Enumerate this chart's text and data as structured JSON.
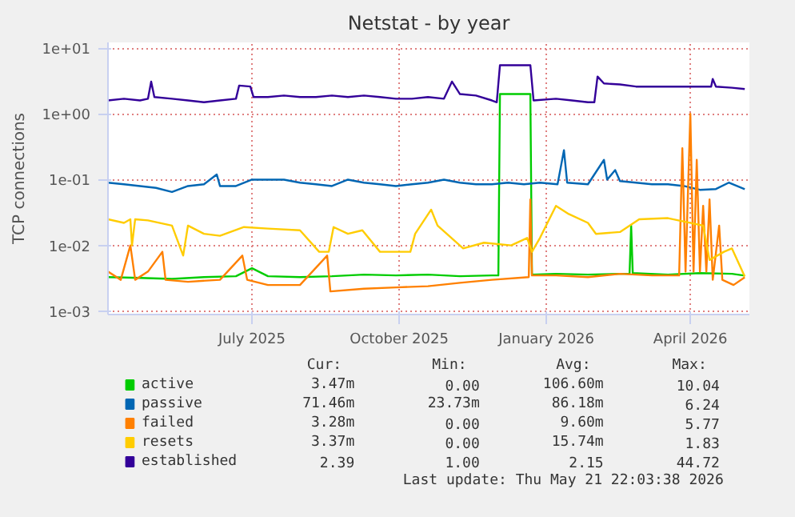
{
  "chart_data": {
    "type": "line",
    "title": "Netstat - by year",
    "ylabel": "TCP connections",
    "log": "y",
    "grid": true,
    "legend": "bottom",
    "marker": "none",
    "line_style": "solid",
    "xlim": [
      "2025-04-16",
      "2026-05-21T22:00"
    ],
    "ylim": [
      0.00089,
      12.2
    ],
    "xticks": [
      {
        "value": "2025-07-15",
        "label": "July 2025"
      },
      {
        "value": "2025-10-15",
        "label": "October 2025"
      },
      {
        "value": "2026-01-15",
        "label": "January 2026"
      },
      {
        "value": "2026-04-15",
        "label": "April 2026"
      }
    ],
    "yticks": [
      {
        "value": 0.001,
        "label": "1e-03"
      },
      {
        "value": 0.01,
        "label": "1e-02"
      },
      {
        "value": 0.1,
        "label": "1e-01"
      },
      {
        "value": 1,
        "label": "1e+00"
      },
      {
        "value": 10,
        "label": "1e+01"
      }
    ],
    "series": [
      {
        "name": "active",
        "color": "#00cc00",
        "x": [
          "2025-04-16",
          "2025-05-06",
          "2025-05-26",
          "2025-06-15",
          "2025-07-05",
          "2025-07-15",
          "2025-07-25",
          "2025-08-14",
          "2025-09-03",
          "2025-09-23",
          "2025-10-13",
          "2025-11-02",
          "2025-11-22",
          "2025-12-12",
          "2025-12-16",
          "2025-12-17",
          "2026-01-05",
          "2026-01-06",
          "2026-01-21",
          "2026-02-10",
          "2026-03-02",
          "2026-03-08",
          "2026-03-09",
          "2026-03-10",
          "2026-04-01",
          "2026-04-21",
          "2026-05-11",
          "2026-05-19"
        ],
        "values": [
          0.0033,
          0.0032,
          0.0031,
          0.0033,
          0.0034,
          0.0045,
          0.0034,
          0.0033,
          0.0034,
          0.0036,
          0.0035,
          0.0036,
          0.0034,
          0.0035,
          0.0035,
          2.0,
          2.0,
          0.0036,
          0.0037,
          0.0036,
          0.0037,
          0.0037,
          0.02,
          0.0038,
          0.0036,
          0.0038,
          0.0037,
          0.00347
        ]
      },
      {
        "name": "passive",
        "color": "#0066b3",
        "x": [
          "2025-04-16",
          "2025-04-26",
          "2025-05-06",
          "2025-05-16",
          "2025-05-26",
          "2025-06-05",
          "2025-06-15",
          "2025-06-23",
          "2025-06-25",
          "2025-07-05",
          "2025-07-15",
          "2025-07-25",
          "2025-08-04",
          "2025-08-14",
          "2025-08-24",
          "2025-09-03",
          "2025-09-13",
          "2025-09-23",
          "2025-10-03",
          "2025-10-13",
          "2025-10-23",
          "2025-11-02",
          "2025-11-12",
          "2025-11-22",
          "2025-12-02",
          "2025-12-12",
          "2025-12-22",
          "2026-01-01",
          "2026-01-11",
          "2026-01-22",
          "2026-01-26",
          "2026-01-28",
          "2026-02-10",
          "2026-02-20",
          "2026-02-22",
          "2026-02-27",
          "2026-03-02",
          "2026-03-12",
          "2026-03-22",
          "2026-04-01",
          "2026-04-11",
          "2026-04-21",
          "2026-05-01",
          "2026-05-09",
          "2026-05-19"
        ],
        "values": [
          0.09,
          0.085,
          0.08,
          0.075,
          0.065,
          0.08,
          0.085,
          0.12,
          0.08,
          0.08,
          0.1,
          0.1,
          0.1,
          0.09,
          0.085,
          0.08,
          0.1,
          0.09,
          0.085,
          0.08,
          0.085,
          0.09,
          0.1,
          0.09,
          0.085,
          0.085,
          0.09,
          0.085,
          0.09,
          0.085,
          0.28,
          0.09,
          0.085,
          0.2,
          0.1,
          0.14,
          0.095,
          0.09,
          0.085,
          0.085,
          0.08,
          0.07,
          0.072,
          0.09,
          0.0715
        ]
      },
      {
        "name": "failed",
        "color": "#ff8000",
        "x": [
          "2025-04-16",
          "2025-04-24",
          "2025-04-30",
          "2025-05-03",
          "2025-05-11",
          "2025-05-20",
          "2025-05-22",
          "2025-06-05",
          "2025-06-25",
          "2025-07-09",
          "2025-07-12",
          "2025-07-25",
          "2025-08-14",
          "2025-08-31",
          "2025-09-02",
          "2025-09-23",
          "2025-10-13",
          "2025-11-02",
          "2025-11-22",
          "2025-12-12",
          "2026-01-04",
          "2026-01-05",
          "2026-01-06",
          "2026-01-21",
          "2026-02-10",
          "2026-03-02",
          "2026-03-22",
          "2026-04-08",
          "2026-04-10",
          "2026-04-12",
          "2026-04-15",
          "2026-04-17",
          "2026-04-19",
          "2026-04-21",
          "2026-04-23",
          "2026-04-25",
          "2026-04-27",
          "2026-04-29",
          "2026-05-03",
          "2026-05-05",
          "2026-05-12",
          "2026-05-19"
        ],
        "values": [
          0.004,
          0.003,
          0.01,
          0.003,
          0.004,
          0.008,
          0.003,
          0.0028,
          0.003,
          0.007,
          0.003,
          0.0025,
          0.0025,
          0.007,
          0.002,
          0.0022,
          0.0023,
          0.0024,
          0.0027,
          0.003,
          0.0033,
          0.05,
          0.0035,
          0.0035,
          0.0033,
          0.0037,
          0.0035,
          0.0035,
          0.3,
          0.004,
          1.0,
          0.004,
          0.2,
          0.004,
          0.04,
          0.004,
          0.05,
          0.003,
          0.02,
          0.003,
          0.0025,
          0.00328
        ]
      },
      {
        "name": "resets",
        "color": "#ffcc00",
        "x": [
          "2025-04-16",
          "2025-04-26",
          "2025-04-30",
          "2025-05-01",
          "2025-05-03",
          "2025-05-11",
          "2025-05-26",
          "2025-06-02",
          "2025-06-05",
          "2025-06-15",
          "2025-06-25",
          "2025-07-10",
          "2025-07-25",
          "2025-08-14",
          "2025-08-26",
          "2025-09-01",
          "2025-09-04",
          "2025-09-13",
          "2025-09-22",
          "2025-10-03",
          "2025-10-13",
          "2025-10-22",
          "2025-10-25",
          "2025-11-04",
          "2025-11-08",
          "2025-11-24",
          "2025-12-07",
          "2025-12-24",
          "2026-01-03",
          "2026-01-06",
          "2026-01-11",
          "2026-01-21",
          "2026-01-29",
          "2026-02-10",
          "2026-02-15",
          "2026-03-02",
          "2026-03-14",
          "2026-04-01",
          "2026-04-23",
          "2026-04-27",
          "2026-05-06",
          "2026-05-11",
          "2026-05-19"
        ],
        "values": [
          0.025,
          0.022,
          0.025,
          0.01,
          0.025,
          0.024,
          0.02,
          0.007,
          0.02,
          0.015,
          0.014,
          0.019,
          0.018,
          0.017,
          0.008,
          0.008,
          0.019,
          0.015,
          0.017,
          0.008,
          0.008,
          0.008,
          0.015,
          0.035,
          0.02,
          0.009,
          0.011,
          0.01,
          0.013,
          0.008,
          0.013,
          0.04,
          0.03,
          0.022,
          0.015,
          0.016,
          0.025,
          0.026,
          0.02,
          0.006,
          0.008,
          0.009,
          0.00337
        ]
      },
      {
        "name": "established",
        "color": "#330099",
        "x": [
          "2025-04-16",
          "2025-04-26",
          "2025-05-06",
          "2025-05-11",
          "2025-05-13",
          "2025-05-15",
          "2025-05-26",
          "2025-06-05",
          "2025-06-15",
          "2025-06-25",
          "2025-07-05",
          "2025-07-07",
          "2025-07-14",
          "2025-07-16",
          "2025-07-25",
          "2025-08-04",
          "2025-08-14",
          "2025-08-24",
          "2025-09-03",
          "2025-09-13",
          "2025-09-23",
          "2025-10-03",
          "2025-10-13",
          "2025-10-23",
          "2025-11-02",
          "2025-11-12",
          "2025-11-17",
          "2025-11-22",
          "2025-12-02",
          "2025-12-12",
          "2025-12-15",
          "2025-12-17",
          "2026-01-05",
          "2026-01-07",
          "2026-01-21",
          "2026-01-31",
          "2026-02-10",
          "2026-02-14",
          "2026-02-16",
          "2026-02-20",
          "2026-03-02",
          "2026-03-12",
          "2026-03-22",
          "2026-04-01",
          "2026-04-11",
          "2026-04-21",
          "2026-04-28",
          "2026-04-29",
          "2026-05-01",
          "2026-05-11",
          "2026-05-19"
        ],
        "values": [
          1.6,
          1.7,
          1.6,
          1.7,
          3.1,
          1.8,
          1.7,
          1.6,
          1.5,
          1.6,
          1.7,
          2.7,
          2.6,
          1.8,
          1.8,
          1.9,
          1.8,
          1.8,
          1.9,
          1.8,
          1.9,
          1.8,
          1.7,
          1.7,
          1.8,
          1.7,
          3.1,
          2.0,
          1.9,
          1.6,
          1.5,
          5.5,
          5.5,
          1.6,
          1.7,
          1.6,
          1.5,
          1.5,
          3.7,
          2.9,
          2.8,
          2.6,
          2.6,
          2.6,
          2.6,
          2.6,
          2.6,
          3.4,
          2.6,
          2.5,
          2.39
        ]
      }
    ],
    "annotations": [
      "Cur:",
      "Min:",
      "Avg:",
      "Max:",
      "3.47m",
      "0.00",
      "106.60m",
      "10.04",
      "71.46m",
      "23.73m",
      "86.18m",
      "6.24",
      "3.28m",
      "0.00",
      "9.60m",
      "5.77",
      "3.37m",
      "0.00",
      "15.74m",
      "1.83",
      "2.39",
      "1.00",
      "2.15",
      "44.72",
      "Last update: Thu May 21 22:03:38 2026"
    ]
  }
}
